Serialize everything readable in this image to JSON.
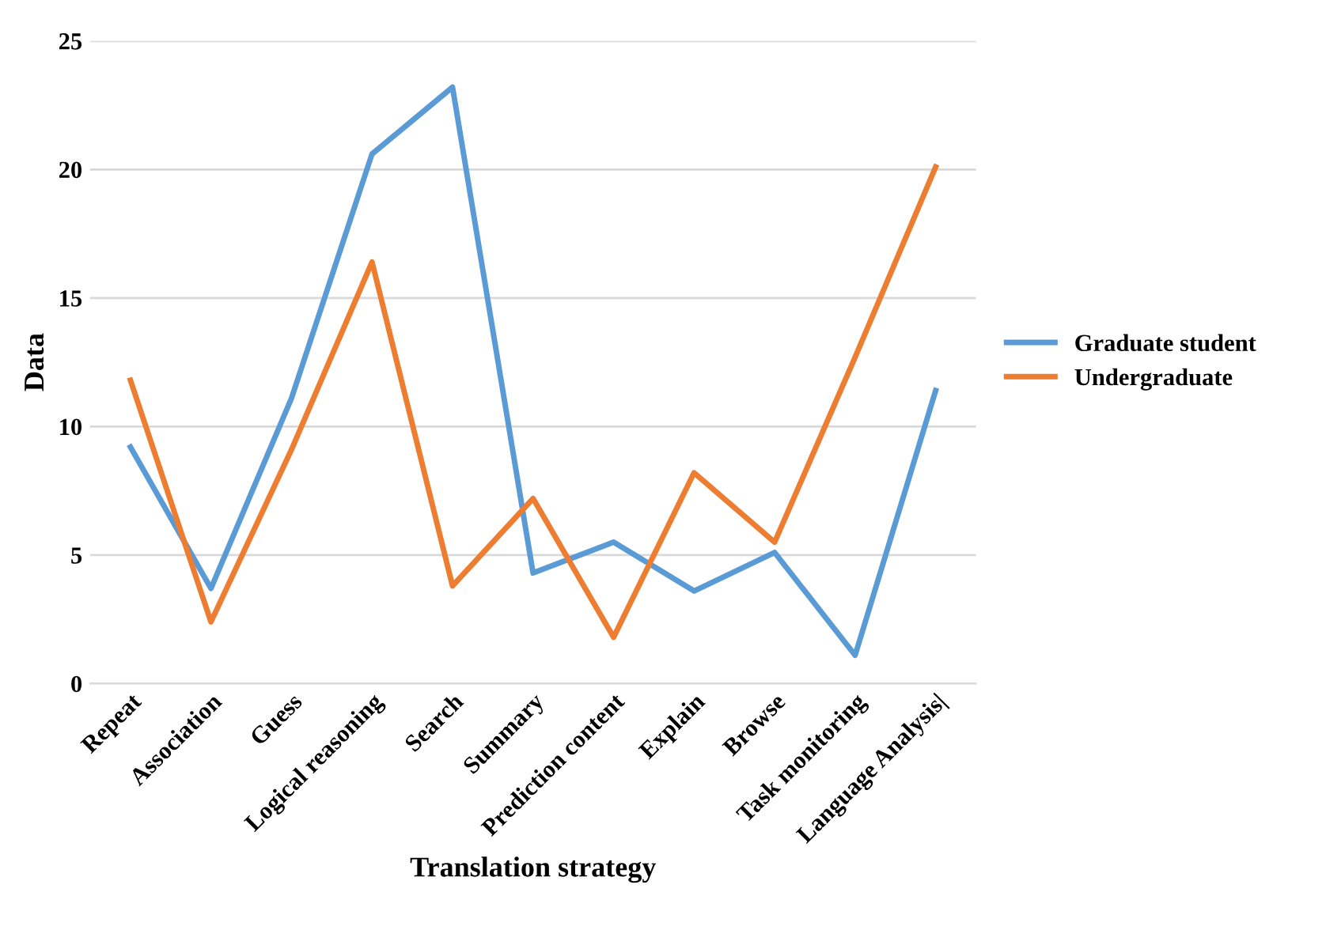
{
  "chart_data": {
    "type": "line",
    "xlabel": "Translation strategy",
    "ylabel": "Data",
    "categories": [
      "Repeat",
      "Association",
      "Guess",
      "Logical reasoning",
      "Search",
      "Summary",
      "Prediction content",
      "Explain",
      "Browse",
      "Task monitoring",
      "Language Analysis|"
    ],
    "series": [
      {
        "name": "Graduate student",
        "color": "#5b9bd5",
        "values": [
          9.2,
          3.7,
          11.1,
          20.6,
          23.2,
          4.3,
          5.5,
          3.6,
          5.1,
          1.1,
          11.4
        ]
      },
      {
        "name": "Undergraduate",
        "color": "#ed7d31",
        "values": [
          11.8,
          2.4,
          9.1,
          16.4,
          3.8,
          7.2,
          1.8,
          8.2,
          5.5,
          12.7,
          20.1
        ]
      }
    ],
    "ylim": [
      0,
      25
    ],
    "yticks": [
      0,
      5,
      10,
      15,
      20,
      25
    ],
    "grid": "y",
    "legend": "right",
    "marker": "none",
    "line_style": "solid"
  }
}
